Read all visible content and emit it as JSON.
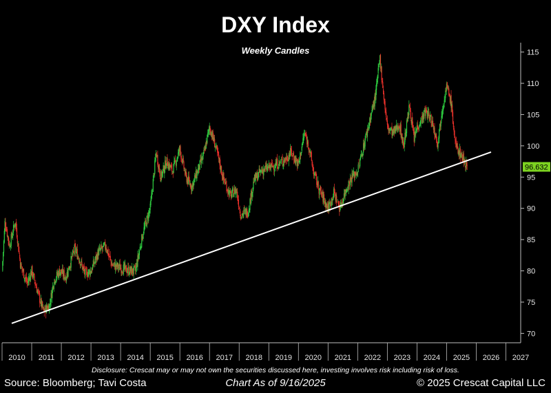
{
  "header": {
    "title": "DXY Index",
    "subtitle": "Weekly Candles"
  },
  "footer": {
    "disclosure": "Disclosure: Crescat may or may not own the securities discussed here, investing involves risk including risk of loss.",
    "source": "Source: Bloomberg; Tavi Costa",
    "chart_as_of": "Chart As of 9/16/2025",
    "copyright": "© 2025 Crescat Capital LLC"
  },
  "colors": {
    "background": "#000000",
    "up_candle": "#2ecc40",
    "down_candle": "#e8302a",
    "last_price_badge": "#7dd321",
    "trendline": "#ffffff"
  },
  "chart_data": {
    "type": "candlestick",
    "title": "DXY Index",
    "subtitle": "Weekly Candles",
    "x_ticks": [
      "2010",
      "2011",
      "2012",
      "2013",
      "2014",
      "2015",
      "2016",
      "2017",
      "2018",
      "2019",
      "2020",
      "2021",
      "2022",
      "2023",
      "2024",
      "2025",
      "2026",
      "2027"
    ],
    "y_ticks": [
      70,
      75,
      80,
      85,
      90,
      95,
      100,
      105,
      110,
      115
    ],
    "xlim": [
      2010.0,
      2027.5
    ],
    "ylim": [
      68.5,
      116.5
    ],
    "last_price": "96.632",
    "grid": false,
    "price_path": [
      [
        2010.0,
        80.0
      ],
      [
        2010.1,
        88.0
      ],
      [
        2010.25,
        84.0
      ],
      [
        2010.45,
        88.0
      ],
      [
        2010.62,
        81.0
      ],
      [
        2010.85,
        78.0
      ],
      [
        2011.0,
        80.0
      ],
      [
        2011.3,
        75.0
      ],
      [
        2011.4,
        73.5
      ],
      [
        2011.6,
        74.5
      ],
      [
        2011.75,
        78.5
      ],
      [
        2011.95,
        80.0
      ],
      [
        2012.15,
        79.0
      ],
      [
        2012.45,
        83.5
      ],
      [
        2012.6,
        82.0
      ],
      [
        2012.8,
        79.5
      ],
      [
        2013.0,
        80.0
      ],
      [
        2013.25,
        83.0
      ],
      [
        2013.5,
        84.0
      ],
      [
        2013.7,
        81.0
      ],
      [
        2014.0,
        80.5
      ],
      [
        2014.3,
        80.0
      ],
      [
        2014.5,
        80.0
      ],
      [
        2014.75,
        86.0
      ],
      [
        2015.0,
        90.0
      ],
      [
        2015.2,
        99.0
      ],
      [
        2015.35,
        95.0
      ],
      [
        2015.55,
        97.5
      ],
      [
        2015.75,
        96.0
      ],
      [
        2016.0,
        99.5
      ],
      [
        2016.2,
        95.0
      ],
      [
        2016.4,
        93.5
      ],
      [
        2016.6,
        96.0
      ],
      [
        2016.8,
        98.5
      ],
      [
        2017.0,
        103.0
      ],
      [
        2017.2,
        100.0
      ],
      [
        2017.45,
        95.0
      ],
      [
        2017.7,
        92.0
      ],
      [
        2017.9,
        93.0
      ],
      [
        2018.05,
        89.0
      ],
      [
        2018.3,
        89.5
      ],
      [
        2018.5,
        94.5
      ],
      [
        2018.75,
        96.0
      ],
      [
        2019.0,
        96.5
      ],
      [
        2019.25,
        97.0
      ],
      [
        2019.45,
        97.5
      ],
      [
        2019.6,
        98.0
      ],
      [
        2019.75,
        99.0
      ],
      [
        2020.0,
        97.0
      ],
      [
        2020.2,
        102.0
      ],
      [
        2020.35,
        100.0
      ],
      [
        2020.5,
        96.0
      ],
      [
        2020.7,
        93.0
      ],
      [
        2020.9,
        91.0
      ],
      [
        2021.0,
        90.0
      ],
      [
        2021.2,
        92.5
      ],
      [
        2021.4,
        90.0
      ],
      [
        2021.6,
        93.0
      ],
      [
        2021.8,
        95.0
      ],
      [
        2022.0,
        96.0
      ],
      [
        2022.2,
        100.0
      ],
      [
        2022.45,
        105.0
      ],
      [
        2022.6,
        108.0
      ],
      [
        2022.75,
        114.0
      ],
      [
        2022.9,
        107.0
      ],
      [
        2023.0,
        103.0
      ],
      [
        2023.2,
        102.0
      ],
      [
        2023.4,
        103.5
      ],
      [
        2023.55,
        100.0
      ],
      [
        2023.75,
        106.5
      ],
      [
        2023.9,
        101.0
      ],
      [
        2024.0,
        103.0
      ],
      [
        2024.3,
        105.5
      ],
      [
        2024.5,
        104.0
      ],
      [
        2024.7,
        100.5
      ],
      [
        2024.85,
        106.0
      ],
      [
        2025.0,
        109.5
      ],
      [
        2025.15,
        107.0
      ],
      [
        2025.3,
        100.0
      ],
      [
        2025.5,
        98.5
      ],
      [
        2025.62,
        97.5
      ],
      [
        2025.7,
        96.6
      ]
    ],
    "annotations": [
      {
        "type": "trendline",
        "from": [
          2010.0,
          71.6
        ],
        "to": [
          2026.5,
          99.0
        ]
      }
    ]
  }
}
